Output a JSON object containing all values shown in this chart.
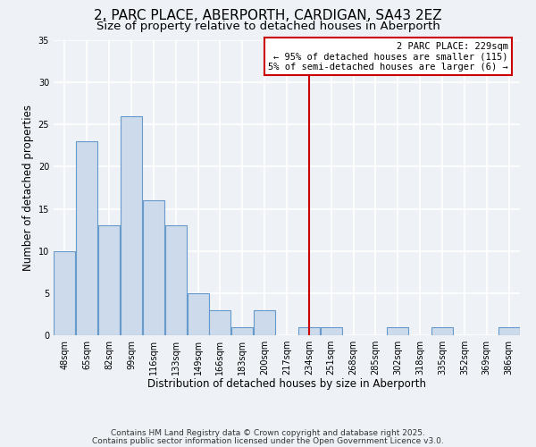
{
  "title": "2, PARC PLACE, ABERPORTH, CARDIGAN, SA43 2EZ",
  "subtitle": "Size of property relative to detached houses in Aberporth",
  "xlabel": "Distribution of detached houses by size in Aberporth",
  "ylabel": "Number of detached properties",
  "bar_values": [
    10,
    23,
    13,
    26,
    16,
    13,
    5,
    3,
    1,
    3,
    0,
    1,
    1,
    0,
    0,
    1,
    0,
    1,
    0,
    0,
    1
  ],
  "tick_labels": [
    "48sqm",
    "65sqm",
    "82sqm",
    "99sqm",
    "116sqm",
    "133sqm",
    "149sqm",
    "166sqm",
    "183sqm",
    "200sqm",
    "217sqm",
    "234sqm",
    "251sqm",
    "268sqm",
    "285sqm",
    "302sqm",
    "318sqm",
    "335sqm",
    "352sqm",
    "369sqm",
    "386sqm"
  ],
  "bar_color": "#ccdaeb",
  "bar_edge_color": "#6699cc",
  "red_line_index": 11,
  "red_line_color": "#cc0000",
  "ylim": [
    0,
    35
  ],
  "yticks": [
    0,
    5,
    10,
    15,
    20,
    25,
    30,
    35
  ],
  "annotation_title": "2 PARC PLACE: 229sqm",
  "annotation_line1": "← 95% of detached houses are smaller (115)",
  "annotation_line2": "5% of semi-detached houses are larger (6) →",
  "annotation_box_edge": "#cc0000",
  "background_color": "#eef2f7",
  "grid_color": "#ffffff",
  "footer1": "Contains HM Land Registry data © Crown copyright and database right 2025.",
  "footer2": "Contains public sector information licensed under the Open Government Licence v3.0.",
  "title_fontsize": 11,
  "subtitle_fontsize": 9.5,
  "axis_label_fontsize": 8.5,
  "tick_fontsize": 7,
  "annotation_fontsize": 7.5,
  "footer_fontsize": 6.5
}
